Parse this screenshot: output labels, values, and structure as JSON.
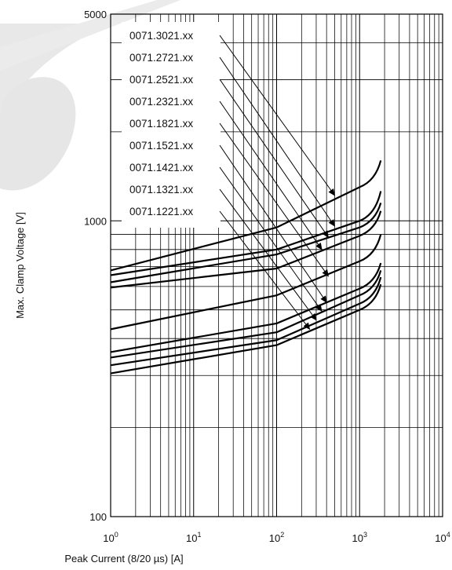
{
  "chart_data": {
    "type": "line",
    "title": "",
    "xlabel": "Peak Current (8/20 µs) [A]",
    "ylabel": "Max. Clamp Voltage [V]",
    "x_scale": "log",
    "y_scale": "log",
    "xlim": [
      1,
      10000
    ],
    "ylim": [
      100,
      5000
    ],
    "x_ticks": [
      {
        "base": "10",
        "exp": "0"
      },
      {
        "base": "10",
        "exp": "1"
      },
      {
        "base": "10",
        "exp": "2"
      },
      {
        "base": "10",
        "exp": "3"
      },
      {
        "base": "10",
        "exp": "4"
      }
    ],
    "x_tick_values": [
      1,
      10,
      100,
      1000,
      10000
    ],
    "y_ticks": [
      "100",
      "1000",
      "5000"
    ],
    "y_tick_values": [
      100,
      1000,
      5000
    ],
    "grid": true,
    "accent_color": "#c8c8c8",
    "series": [
      {
        "name": "0071.3021.xx",
        "x": [
          1,
          100,
          1000,
          1800
        ],
        "y": [
          680,
          950,
          1300,
          1600
        ],
        "arrow_to": [
          500,
          1220
        ]
      },
      {
        "name": "0071.2721.xx",
        "x": [
          1,
          100,
          1000,
          1800
        ],
        "y": [
          655,
          800,
          1000,
          1260
        ],
        "arrow_to": [
          500,
          960
        ]
      },
      {
        "name": "0071.2521.xx",
        "x": [
          1,
          100,
          1000,
          1800
        ],
        "y": [
          620,
          770,
          950,
          1150
        ],
        "arrow_to": [
          420,
          880
        ]
      },
      {
        "name": "0071.2321.xx",
        "x": [
          1,
          100,
          1000,
          1800
        ],
        "y": [
          595,
          690,
          890,
          1080
        ],
        "arrow_to": [
          350,
          800
        ]
      },
      {
        "name": "0071.1821.xx",
        "x": [
          1,
          100,
          1000,
          1800
        ],
        "y": [
          430,
          560,
          730,
          900
        ],
        "arrow_to": [
          420,
          650
        ]
      },
      {
        "name": "0071.1521.xx",
        "x": [
          1,
          100,
          1000,
          1800
        ],
        "y": [
          360,
          450,
          590,
          720
        ],
        "arrow_to": [
          400,
          530
        ]
      },
      {
        "name": "0071.1421.xx",
        "x": [
          1,
          100,
          1000,
          1800
        ],
        "y": [
          345,
          420,
          560,
          680
        ],
        "arrow_to": [
          350,
          495
        ]
      },
      {
        "name": "0071.1321.xx",
        "x": [
          1,
          100,
          1000,
          1800
        ],
        "y": [
          325,
          395,
          525,
          645
        ],
        "arrow_to": [
          300,
          462
        ]
      },
      {
        "name": "0071.1221.xx",
        "x": [
          1,
          100,
          1000,
          1800
        ],
        "y": [
          305,
          380,
          500,
          610
        ],
        "arrow_to": [
          250,
          430
        ]
      }
    ]
  }
}
